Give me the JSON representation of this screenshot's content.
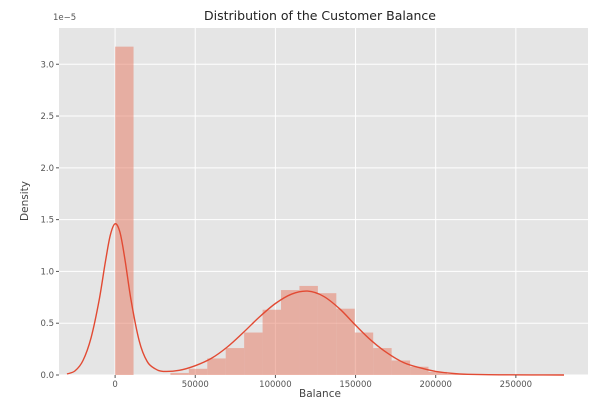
{
  "chart_data": {
    "type": "histogram",
    "title": "Distribution of the Customer Balance",
    "xlabel": "Balance",
    "ylabel": "Density",
    "y_scale_label": "1e−5",
    "xlim": [
      -35000,
      295000
    ],
    "ylim": [
      0,
      3.35
    ],
    "x_ticks": [
      0,
      50000,
      100000,
      150000,
      200000,
      250000
    ],
    "x_tick_labels": [
      "0",
      "50000",
      "100000",
      "150000",
      "200000",
      "250000"
    ],
    "y_ticks": [
      0.0,
      0.5,
      1.0,
      1.5,
      2.0,
      2.5,
      3.0
    ],
    "y_tick_labels": [
      "0.0",
      "0.5",
      "1.0",
      "1.5",
      "2.0",
      "2.5",
      "3.0"
    ],
    "grid": true,
    "colors": {
      "bars": "#e8826b",
      "line": "#e24a33",
      "background": "#e5e5e5",
      "grid": "#ffffff"
    },
    "bins": [
      {
        "x0": 0,
        "x1": 11500,
        "density": 3.17
      },
      {
        "x0": 11500,
        "x1": 23000,
        "density": 0.0
      },
      {
        "x0": 23000,
        "x1": 34500,
        "density": 0.0
      },
      {
        "x0": 34500,
        "x1": 46000,
        "density": 0.02
      },
      {
        "x0": 46000,
        "x1": 57500,
        "density": 0.06
      },
      {
        "x0": 57500,
        "x1": 69000,
        "density": 0.16
      },
      {
        "x0": 69000,
        "x1": 80500,
        "density": 0.26
      },
      {
        "x0": 80500,
        "x1": 92000,
        "density": 0.41
      },
      {
        "x0": 92000,
        "x1": 103500,
        "density": 0.63
      },
      {
        "x0": 103500,
        "x1": 115000,
        "density": 0.82
      },
      {
        "x0": 115000,
        "x1": 126500,
        "density": 0.86
      },
      {
        "x0": 126500,
        "x1": 138000,
        "density": 0.79
      },
      {
        "x0": 138000,
        "x1": 149500,
        "density": 0.64
      },
      {
        "x0": 149500,
        "x1": 161000,
        "density": 0.41
      },
      {
        "x0": 161000,
        "x1": 172500,
        "density": 0.26
      },
      {
        "x0": 172500,
        "x1": 184000,
        "density": 0.14
      },
      {
        "x0": 184000,
        "x1": 195500,
        "density": 0.08
      },
      {
        "x0": 195500,
        "x1": 207000,
        "density": 0.03
      },
      {
        "x0": 207000,
        "x1": 218500,
        "density": 0.01
      },
      {
        "x0": 218500,
        "x1": 230000,
        "density": 0.005
      },
      {
        "x0": 230000,
        "x1": 241500,
        "density": 0.0
      },
      {
        "x0": 241500,
        "x1": 253000,
        "density": 0.0
      }
    ],
    "kde": [
      {
        "x": -30000,
        "y": 0.01
      },
      {
        "x": -25000,
        "y": 0.04
      },
      {
        "x": -20000,
        "y": 0.14
      },
      {
        "x": -15000,
        "y": 0.36
      },
      {
        "x": -10000,
        "y": 0.72
      },
      {
        "x": -6000,
        "y": 1.1
      },
      {
        "x": -3000,
        "y": 1.35
      },
      {
        "x": 0,
        "y": 1.46
      },
      {
        "x": 3000,
        "y": 1.38
      },
      {
        "x": 6000,
        "y": 1.13
      },
      {
        "x": 10000,
        "y": 0.72
      },
      {
        "x": 15000,
        "y": 0.33
      },
      {
        "x": 20000,
        "y": 0.13
      },
      {
        "x": 25000,
        "y": 0.06
      },
      {
        "x": 30000,
        "y": 0.035
      },
      {
        "x": 40000,
        "y": 0.045
      },
      {
        "x": 50000,
        "y": 0.09
      },
      {
        "x": 60000,
        "y": 0.16
      },
      {
        "x": 70000,
        "y": 0.27
      },
      {
        "x": 80000,
        "y": 0.41
      },
      {
        "x": 90000,
        "y": 0.56
      },
      {
        "x": 100000,
        "y": 0.69
      },
      {
        "x": 110000,
        "y": 0.78
      },
      {
        "x": 120000,
        "y": 0.81
      },
      {
        "x": 130000,
        "y": 0.76
      },
      {
        "x": 140000,
        "y": 0.64
      },
      {
        "x": 150000,
        "y": 0.48
      },
      {
        "x": 160000,
        "y": 0.33
      },
      {
        "x": 170000,
        "y": 0.21
      },
      {
        "x": 180000,
        "y": 0.12
      },
      {
        "x": 190000,
        "y": 0.07
      },
      {
        "x": 200000,
        "y": 0.035
      },
      {
        "x": 210000,
        "y": 0.016
      },
      {
        "x": 220000,
        "y": 0.007
      },
      {
        "x": 240000,
        "y": 0.002
      },
      {
        "x": 260000,
        "y": 0.001
      },
      {
        "x": 280000,
        "y": 0.0
      }
    ]
  }
}
